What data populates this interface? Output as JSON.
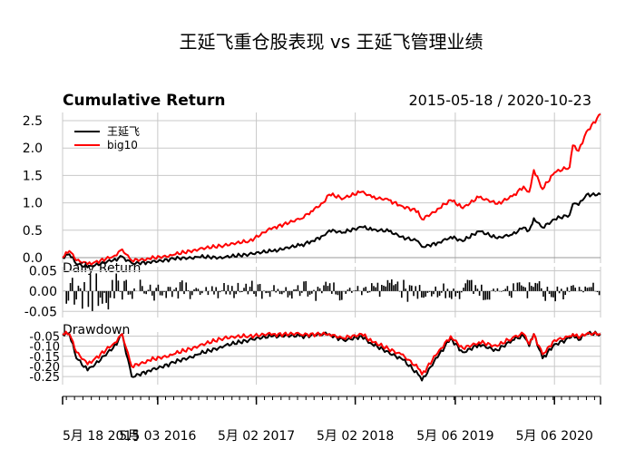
{
  "chart_data": {
    "type": "line",
    "title": "王延飞重仓股表现 vs 王延飞管理业绩",
    "date_range": "2015-05-18 / 2020-10-23",
    "x_range": [
      "2015-05-18",
      "2020-10-23"
    ],
    "x_ticks": [
      "5月 18 2015",
      "5月 03 2016",
      "5月 02 2017",
      "5月 02 2018",
      "5月 06 2019",
      "5月 06 2020"
    ],
    "x_tick_dates": [
      "2015-05-18",
      "2016-05-03",
      "2017-05-02",
      "2018-05-02",
      "2019-05-06",
      "2020-05-06"
    ],
    "legend": {
      "placement": "top-left",
      "entries": [
        "王延飞",
        "big10"
      ]
    },
    "colors": {
      "王延飞": "#000000",
      "big10": "#ff0000",
      "grid": "#c8c8c8"
    },
    "grid": true,
    "panels": [
      {
        "title": "Cumulative Return",
        "ylim": [
          -0.1,
          2.65
        ],
        "yticks": [
          "0.0",
          "0.5",
          "1.0",
          "1.5",
          "2.0",
          "2.5"
        ],
        "series": [
          {
            "name": "王延飞",
            "x": [
              "2015-05-18",
              "2015-06-12",
              "2015-07-08",
              "2015-08-18",
              "2015-09-15",
              "2015-11-20",
              "2015-12-24",
              "2016-01-28",
              "2016-04-01",
              "2016-07-01",
              "2016-10-01",
              "2017-01-03",
              "2017-04-05",
              "2017-07-03",
              "2017-10-09",
              "2017-11-20",
              "2018-01-03",
              "2018-01-26",
              "2018-03-20",
              "2018-05-25",
              "2018-07-03",
              "2018-09-03",
              "2018-10-18",
              "2018-12-20",
              "2019-01-03",
              "2019-03-08",
              "2019-04-19",
              "2019-06-03",
              "2019-08-01",
              "2019-10-08",
              "2019-12-02",
              "2020-01-13",
              "2020-02-03",
              "2020-02-20",
              "2020-03-23",
              "2020-05-06",
              "2020-07-01",
              "2020-07-13",
              "2020-08-03",
              "2020-09-01",
              "2020-10-23"
            ],
            "values": [
              0.0,
              0.06,
              -0.12,
              -0.18,
              -0.14,
              -0.05,
              0.02,
              -0.1,
              -0.08,
              -0.02,
              0.01,
              0.0,
              0.06,
              0.12,
              0.22,
              0.3,
              0.4,
              0.5,
              0.46,
              0.56,
              0.5,
              0.48,
              0.38,
              0.3,
              0.2,
              0.28,
              0.38,
              0.3,
              0.48,
              0.35,
              0.42,
              0.55,
              0.5,
              0.72,
              0.55,
              0.7,
              0.78,
              0.98,
              0.96,
              1.15,
              1.15
            ]
          },
          {
            "name": "big10",
            "x": [
              "2015-05-18",
              "2015-06-12",
              "2015-07-08",
              "2015-08-18",
              "2015-09-15",
              "2015-11-20",
              "2015-12-24",
              "2016-01-28",
              "2016-04-01",
              "2016-07-01",
              "2016-10-01",
              "2017-01-03",
              "2017-04-05",
              "2017-07-03",
              "2017-10-09",
              "2017-11-20",
              "2018-01-03",
              "2018-01-26",
              "2018-03-20",
              "2018-05-25",
              "2018-07-03",
              "2018-09-03",
              "2018-10-18",
              "2018-12-20",
              "2019-01-03",
              "2019-03-08",
              "2019-04-19",
              "2019-06-03",
              "2019-08-01",
              "2019-10-08",
              "2019-12-02",
              "2020-01-13",
              "2020-02-03",
              "2020-02-20",
              "2020-03-23",
              "2020-05-06",
              "2020-07-01",
              "2020-07-13",
              "2020-08-03",
              "2020-09-01",
              "2020-10-23"
            ],
            "values": [
              0.0,
              0.12,
              -0.05,
              -0.12,
              -0.08,
              0.02,
              0.15,
              -0.05,
              -0.02,
              0.05,
              0.15,
              0.22,
              0.3,
              0.55,
              0.7,
              0.85,
              1.0,
              1.15,
              1.08,
              1.2,
              1.1,
              1.05,
              0.95,
              0.85,
              0.7,
              0.9,
              1.05,
              0.9,
              1.1,
              0.98,
              1.12,
              1.3,
              1.2,
              1.6,
              1.25,
              1.55,
              1.65,
              2.05,
              1.95,
              2.3,
              2.62
            ]
          }
        ]
      },
      {
        "title": "Daily Return",
        "ylim": [
          -0.065,
          0.06
        ],
        "yticks": [
          "0.05",
          "0.00",
          "-0.05"
        ]
      },
      {
        "title": "Drawdown",
        "ylim": [
          -0.29,
          -0.03
        ],
        "yticks": [
          "-0.05",
          "-0.10",
          "-0.15",
          "-0.20",
          "-0.25"
        ],
        "series": [
          {
            "name": "王延飞",
            "x": [
              "2015-05-18",
              "2015-06-12",
              "2015-07-08",
              "2015-08-18",
              "2015-09-15",
              "2015-11-20",
              "2015-12-24",
              "2016-01-28",
              "2016-04-01",
              "2016-07-01",
              "2016-10-01",
              "2017-01-03",
              "2017-04-05",
              "2017-07-03",
              "2017-10-09",
              "2018-01-26",
              "2018-03-20",
              "2018-05-25",
              "2018-07-03",
              "2018-10-18",
              "2018-12-20",
              "2019-01-03",
              "2019-03-08",
              "2019-04-19",
              "2019-06-03",
              "2019-08-01",
              "2019-10-08",
              "2019-12-02",
              "2020-01-13",
              "2020-02-03",
              "2020-02-20",
              "2020-03-23",
              "2020-05-06",
              "2020-07-01",
              "2020-07-13",
              "2020-08-03",
              "2020-09-01",
              "2020-10-23"
            ],
            "values": [
              -0.04,
              -0.04,
              -0.16,
              -0.22,
              -0.19,
              -0.11,
              -0.04,
              -0.25,
              -0.22,
              -0.18,
              -0.14,
              -0.1,
              -0.07,
              -0.05,
              -0.05,
              -0.04,
              -0.07,
              -0.05,
              -0.09,
              -0.16,
              -0.24,
              -0.27,
              -0.14,
              -0.06,
              -0.13,
              -0.09,
              -0.12,
              -0.07,
              -0.05,
              -0.1,
              -0.04,
              -0.16,
              -0.09,
              -0.06,
              -0.04,
              -0.07,
              -0.04,
              -0.04
            ]
          },
          {
            "name": "big10",
            "x": [
              "2015-05-18",
              "2015-06-12",
              "2015-07-08",
              "2015-08-18",
              "2015-09-15",
              "2015-11-20",
              "2015-12-24",
              "2016-01-28",
              "2016-04-01",
              "2016-07-01",
              "2016-10-01",
              "2017-01-03",
              "2017-04-05",
              "2017-07-03",
              "2017-10-09",
              "2018-01-26",
              "2018-03-20",
              "2018-05-25",
              "2018-07-03",
              "2018-10-18",
              "2018-12-20",
              "2019-01-03",
              "2019-03-08",
              "2019-04-19",
              "2019-06-03",
              "2019-08-01",
              "2019-10-08",
              "2019-12-02",
              "2020-01-13",
              "2020-02-03",
              "2020-02-20",
              "2020-03-23",
              "2020-05-06",
              "2020-07-01",
              "2020-07-13",
              "2020-08-03",
              "2020-09-01",
              "2020-10-23"
            ],
            "values": [
              -0.04,
              -0.04,
              -0.13,
              -0.19,
              -0.16,
              -0.09,
              -0.04,
              -0.2,
              -0.17,
              -0.14,
              -0.1,
              -0.06,
              -0.05,
              -0.04,
              -0.04,
              -0.04,
              -0.06,
              -0.04,
              -0.08,
              -0.14,
              -0.21,
              -0.24,
              -0.12,
              -0.05,
              -0.11,
              -0.08,
              -0.1,
              -0.06,
              -0.04,
              -0.09,
              -0.04,
              -0.14,
              -0.07,
              -0.05,
              -0.04,
              -0.06,
              -0.04,
              -0.04
            ]
          }
        ]
      }
    ]
  }
}
